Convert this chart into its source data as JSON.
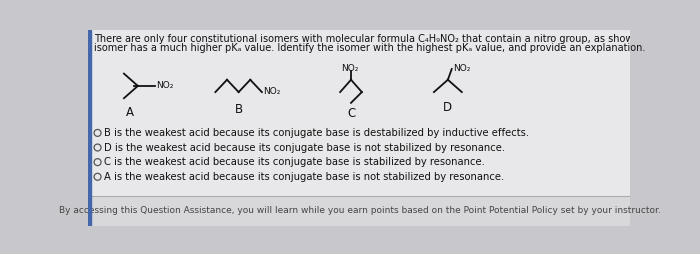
{
  "bg_color": "#c8c8cc",
  "main_panel_color": "#e8e8ea",
  "footer_panel_color": "#d8d8da",
  "left_bar_color": "#4466aa",
  "title_line1": "There are only four constitutional isomers with molecular formula C₄H₉NO₂ that contain a nitro group, as shown below. Three of these isomers have similar pKₐ values, while the fourt",
  "title_line2": "isomer has a much higher pKₐ value. Identify the isomer with the highest pKₐ value, and provide an explanation.",
  "choices": [
    "B is the weakest acid because its conjugate base is destabilized by inductive effects.",
    "D is the weakest acid because its conjugate base is not stabilized by resonance.",
    "C is the weakest acid because its conjugate base is stabilized by resonance.",
    "A is the weakest acid because its conjugate base is not stabilized by resonance."
  ],
  "footer_text": "By accessing this Question Assistance, you will learn while you earn points based on the Point Potential Policy set by your instructor.",
  "text_color": "#111111",
  "font_size_title": 7.0,
  "font_size_choices": 7.2,
  "font_size_footer": 6.5,
  "struct_no2": "NO₂"
}
